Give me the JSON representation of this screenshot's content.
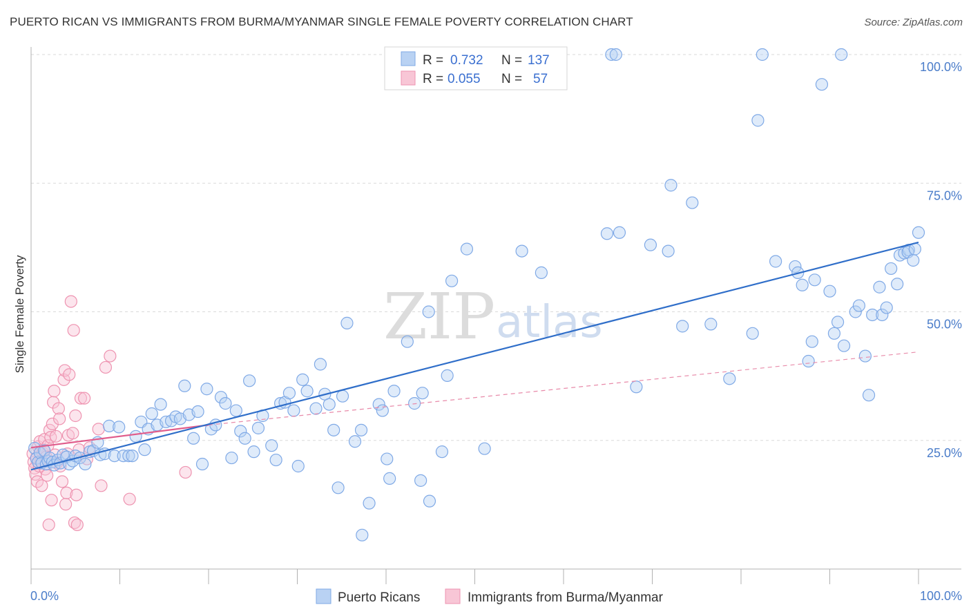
{
  "title": "PUERTO RICAN VS IMMIGRANTS FROM BURMA/MYANMAR SINGLE FEMALE POVERTY CORRELATION CHART",
  "source": "Source: ZipAtlas.com",
  "watermark": {
    "part1": "ZIP",
    "part2": "atlas"
  },
  "legend": {
    "r_label": "R =",
    "n_label": "N =",
    "series": [
      {
        "name": "Puerto Ricans",
        "r": "0.732",
        "n": "137",
        "color": "#7fa9e6",
        "fill": "#b9d2f3"
      },
      {
        "name": "Immigrants from Burma/Myanmar",
        "r": "0.055",
        "n": "57",
        "color": "#ee93b0",
        "fill": "#f8c6d6"
      }
    ]
  },
  "chart_data": {
    "type": "scatter",
    "title": "PUERTO RICAN VS IMMIGRANTS FROM BURMA/MYANMAR SINGLE FEMALE POVERTY CORRELATION CHART",
    "xlabel": "",
    "ylabel": "Single Female Poverty",
    "xlim": [
      0,
      100
    ],
    "ylim": [
      0,
      100
    ],
    "x_tick_labels": [
      "0.0%",
      "100.0%"
    ],
    "y_tick_labels": [
      {
        "value": 25,
        "label": "25.0%"
      },
      {
        "value": 50,
        "label": "50.0%"
      },
      {
        "value": 75,
        "label": "75.0%"
      },
      {
        "value": 100,
        "label": "100.0%"
      }
    ],
    "x_minor_ticks": [
      0,
      10,
      20,
      30,
      40,
      50,
      60,
      70,
      80,
      90,
      100
    ],
    "series": [
      {
        "name": "Puerto Ricans",
        "color": "#7fa9e6",
        "trend": {
          "x0": 0,
          "y0": 19.3,
          "x1": 100,
          "y1": 63.5,
          "color": "#2f6ec9"
        },
        "points": [
          [
            0.4,
            23.5
          ],
          [
            0.6,
            21.5
          ],
          [
            0.8,
            20.8
          ],
          [
            1.0,
            22.6
          ],
          [
            1.2,
            20.6
          ],
          [
            1.5,
            23.0
          ],
          [
            1.7,
            20.4
          ],
          [
            1.9,
            21.0
          ],
          [
            2.1,
            21.6
          ],
          [
            2.4,
            20.8
          ],
          [
            2.6,
            20.2
          ],
          [
            3.0,
            21.2
          ],
          [
            3.3,
            20.6
          ],
          [
            3.6,
            22.2
          ],
          [
            4.0,
            21.8
          ],
          [
            4.3,
            20.4
          ],
          [
            4.7,
            21.0
          ],
          [
            5.0,
            22.0
          ],
          [
            5.5,
            21.6
          ],
          [
            6.1,
            20.4
          ],
          [
            6.6,
            22.8
          ],
          [
            7.0,
            23.0
          ],
          [
            7.5,
            24.6
          ],
          [
            7.8,
            22.2
          ],
          [
            8.3,
            22.4
          ],
          [
            8.8,
            27.8
          ],
          [
            9.4,
            22.0
          ],
          [
            9.9,
            27.6
          ],
          [
            10.4,
            22.0
          ],
          [
            11.0,
            22.0
          ],
          [
            11.4,
            22.0
          ],
          [
            11.8,
            25.8
          ],
          [
            12.4,
            28.6
          ],
          [
            12.8,
            23.2
          ],
          [
            13.2,
            27.2
          ],
          [
            13.6,
            30.2
          ],
          [
            14.2,
            28.0
          ],
          [
            14.6,
            32.0
          ],
          [
            15.2,
            28.6
          ],
          [
            15.8,
            28.8
          ],
          [
            16.3,
            29.6
          ],
          [
            16.8,
            29.2
          ],
          [
            17.3,
            35.6
          ],
          [
            17.8,
            30.0
          ],
          [
            18.3,
            25.4
          ],
          [
            18.8,
            30.6
          ],
          [
            19.3,
            20.4
          ],
          [
            19.8,
            35.0
          ],
          [
            20.3,
            27.2
          ],
          [
            20.8,
            28.0
          ],
          [
            21.4,
            33.4
          ],
          [
            21.9,
            32.2
          ],
          [
            22.6,
            21.6
          ],
          [
            23.1,
            30.8
          ],
          [
            23.6,
            26.8
          ],
          [
            24.1,
            25.4
          ],
          [
            24.6,
            36.6
          ],
          [
            25.1,
            22.8
          ],
          [
            25.6,
            27.4
          ],
          [
            26.1,
            29.8
          ],
          [
            27.1,
            24.0
          ],
          [
            27.6,
            21.2
          ],
          [
            28.1,
            32.2
          ],
          [
            28.6,
            32.4
          ],
          [
            29.1,
            34.2
          ],
          [
            29.6,
            30.8
          ],
          [
            30.1,
            20.0
          ],
          [
            30.6,
            36.8
          ],
          [
            31.1,
            34.6
          ],
          [
            32.1,
            31.2
          ],
          [
            32.6,
            39.8
          ],
          [
            33.1,
            34.0
          ],
          [
            33.6,
            32.0
          ],
          [
            34.1,
            27.0
          ],
          [
            34.6,
            15.8
          ],
          [
            35.1,
            33.6
          ],
          [
            35.6,
            47.8
          ],
          [
            36.5,
            24.8
          ],
          [
            37.2,
            27.0
          ],
          [
            38.1,
            12.8
          ],
          [
            37.3,
            6.6
          ],
          [
            39.2,
            32.0
          ],
          [
            39.6,
            30.8
          ],
          [
            40.1,
            21.4
          ],
          [
            40.4,
            17.6
          ],
          [
            40.9,
            34.6
          ],
          [
            42.4,
            44.2
          ],
          [
            43.2,
            32.2
          ],
          [
            44.1,
            34.2
          ],
          [
            43.9,
            17.2
          ],
          [
            44.8,
            50.0
          ],
          [
            44.9,
            13.2
          ],
          [
            46.3,
            22.8
          ],
          [
            46.9,
            37.6
          ],
          [
            47.4,
            56.0
          ],
          [
            49.1,
            62.2
          ],
          [
            51.1,
            23.4
          ],
          [
            55.3,
            61.8
          ],
          [
            57.5,
            57.6
          ],
          [
            64.9,
            65.2
          ],
          [
            65.4,
            100.0
          ],
          [
            65.9,
            100.0
          ],
          [
            66.3,
            65.4
          ],
          [
            68.2,
            35.4
          ],
          [
            69.8,
            63.0
          ],
          [
            71.8,
            61.8
          ],
          [
            72.1,
            74.6
          ],
          [
            73.4,
            47.2
          ],
          [
            74.5,
            71.2
          ],
          [
            76.6,
            47.6
          ],
          [
            78.7,
            37.0
          ],
          [
            81.3,
            45.8
          ],
          [
            81.9,
            87.2
          ],
          [
            82.4,
            100.0
          ],
          [
            83.9,
            59.8
          ],
          [
            86.1,
            58.8
          ],
          [
            86.4,
            57.6
          ],
          [
            86.9,
            55.2
          ],
          [
            87.6,
            40.4
          ],
          [
            88.0,
            44.2
          ],
          [
            88.3,
            56.2
          ],
          [
            89.1,
            94.2
          ],
          [
            90.0,
            54.0
          ],
          [
            90.5,
            45.8
          ],
          [
            90.9,
            48.0
          ],
          [
            91.3,
            100.0
          ],
          [
            91.6,
            43.4
          ],
          [
            92.9,
            50.0
          ],
          [
            93.3,
            51.2
          ],
          [
            94.0,
            41.4
          ],
          [
            94.4,
            33.8
          ],
          [
            94.8,
            49.4
          ],
          [
            95.6,
            54.8
          ],
          [
            95.9,
            49.4
          ],
          [
            96.4,
            50.8
          ],
          [
            96.9,
            58.4
          ],
          [
            97.6,
            55.4
          ],
          [
            97.9,
            61.0
          ],
          [
            98.4,
            61.4
          ],
          [
            98.9,
            62.0
          ],
          [
            98.8,
            61.6
          ],
          [
            99.4,
            60.0
          ],
          [
            99.6,
            62.2
          ],
          [
            100.0,
            65.4
          ]
        ]
      },
      {
        "name": "Immigrants from Burma/Myanmar",
        "color": "#ee93b0",
        "trend": {
          "x0": 0,
          "y0": 23.6,
          "x1": 20,
          "y1": 28.0,
          "color": "#e05d8c"
        },
        "trend_extended": {
          "x0": 20,
          "y0": 28.0,
          "x1": 100,
          "y1": 42.2,
          "color": "#e88aa9"
        },
        "points": [
          [
            0.2,
            22.4
          ],
          [
            0.3,
            20.8
          ],
          [
            0.4,
            19.6
          ],
          [
            0.5,
            18.4
          ],
          [
            0.6,
            21.6
          ],
          [
            0.7,
            17.0
          ],
          [
            0.8,
            23.8
          ],
          [
            0.9,
            20.0
          ],
          [
            1.0,
            24.8
          ],
          [
            1.1,
            21.0
          ],
          [
            1.2,
            16.2
          ],
          [
            1.3,
            22.6
          ],
          [
            1.4,
            23.2
          ],
          [
            1.5,
            25.2
          ],
          [
            1.6,
            19.4
          ],
          [
            1.7,
            21.8
          ],
          [
            1.8,
            18.2
          ],
          [
            1.9,
            24.0
          ],
          [
            2.0,
            8.6
          ],
          [
            2.1,
            27.0
          ],
          [
            2.2,
            25.6
          ],
          [
            2.3,
            13.4
          ],
          [
            2.4,
            28.2
          ],
          [
            2.5,
            32.4
          ],
          [
            2.6,
            34.6
          ],
          [
            2.7,
            22.2
          ],
          [
            2.8,
            25.8
          ],
          [
            2.9,
            20.6
          ],
          [
            3.1,
            31.2
          ],
          [
            3.2,
            29.2
          ],
          [
            3.3,
            20.0
          ],
          [
            3.5,
            17.0
          ],
          [
            3.7,
            36.8
          ],
          [
            3.8,
            38.6
          ],
          [
            3.9,
            12.6
          ],
          [
            4.0,
            14.8
          ],
          [
            4.1,
            22.4
          ],
          [
            4.2,
            26.0
          ],
          [
            4.3,
            37.8
          ],
          [
            4.5,
            52.0
          ],
          [
            4.7,
            26.4
          ],
          [
            4.8,
            46.4
          ],
          [
            4.9,
            9.0
          ],
          [
            5.0,
            29.8
          ],
          [
            5.1,
            14.4
          ],
          [
            5.2,
            8.6
          ],
          [
            5.4,
            23.2
          ],
          [
            5.6,
            33.2
          ],
          [
            6.0,
            33.2
          ],
          [
            6.3,
            21.4
          ],
          [
            6.6,
            23.6
          ],
          [
            7.6,
            27.2
          ],
          [
            7.9,
            16.2
          ],
          [
            8.4,
            39.2
          ],
          [
            8.9,
            41.4
          ],
          [
            11.1,
            13.6
          ],
          [
            17.4,
            18.8
          ]
        ]
      }
    ]
  }
}
